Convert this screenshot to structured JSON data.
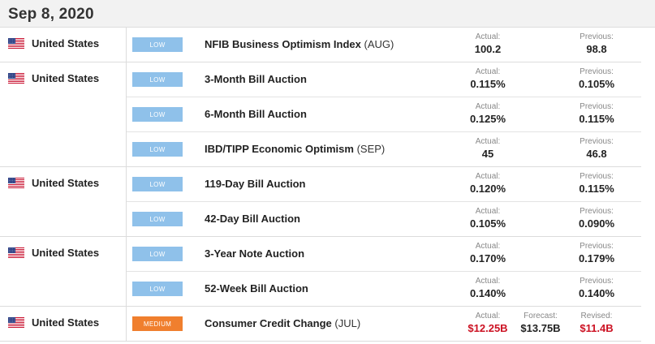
{
  "date": "Sep 8, 2020",
  "colors": {
    "low": "#8fc1ea",
    "medium": "#f07f2e",
    "negative": "#cc1122"
  },
  "groups": [
    {
      "country": "United States",
      "flag_icon": "us-flag-icon",
      "events": [
        {
          "impact": "LOW",
          "name": "NFIB Business Optimism Index",
          "period": "(AUG)",
          "stats": [
            {
              "label": "Actual:",
              "value": "100.2"
            },
            {
              "label": "Previous:",
              "value": "98.8"
            }
          ]
        }
      ]
    },
    {
      "country": "United States",
      "flag_icon": "us-flag-icon",
      "events": [
        {
          "impact": "LOW",
          "name": "3-Month Bill Auction",
          "period": "",
          "stats": [
            {
              "label": "Actual:",
              "value": "0.115%"
            },
            {
              "label": "Previous:",
              "value": "0.105%"
            }
          ]
        },
        {
          "impact": "LOW",
          "name": "6-Month Bill Auction",
          "period": "",
          "stats": [
            {
              "label": "Actual:",
              "value": "0.125%"
            },
            {
              "label": "Previous:",
              "value": "0.115%"
            }
          ]
        },
        {
          "impact": "LOW",
          "name": "IBD/TIPP Economic Optimism",
          "period": "(SEP)",
          "stats": [
            {
              "label": "Actual:",
              "value": "45"
            },
            {
              "label": "Previous:",
              "value": "46.8"
            }
          ]
        }
      ]
    },
    {
      "country": "United States",
      "flag_icon": "us-flag-icon",
      "events": [
        {
          "impact": "LOW",
          "name": "119-Day Bill Auction",
          "period": "",
          "stats": [
            {
              "label": "Actual:",
              "value": "0.120%"
            },
            {
              "label": "Previous:",
              "value": "0.115%"
            }
          ]
        },
        {
          "impact": "LOW",
          "name": "42-Day Bill Auction",
          "period": "",
          "stats": [
            {
              "label": "Actual:",
              "value": "0.105%"
            },
            {
              "label": "Previous:",
              "value": "0.090%"
            }
          ]
        }
      ]
    },
    {
      "country": "United States",
      "flag_icon": "us-flag-icon",
      "events": [
        {
          "impact": "LOW",
          "name": "3-Year Note Auction",
          "period": "",
          "stats": [
            {
              "label": "Actual:",
              "value": "0.170%"
            },
            {
              "label": "Previous:",
              "value": "0.179%"
            }
          ]
        },
        {
          "impact": "LOW",
          "name": "52-Week Bill Auction",
          "period": "",
          "stats": [
            {
              "label": "Actual:",
              "value": "0.140%"
            },
            {
              "label": "Previous:",
              "value": "0.140%"
            }
          ]
        }
      ]
    },
    {
      "country": "United States",
      "flag_icon": "us-flag-icon",
      "events": [
        {
          "impact": "MEDIUM",
          "name": "Consumer Credit Change",
          "period": "(JUL)",
          "stats": [
            {
              "label": "Actual:",
              "value": "$12.25B",
              "color": "negative"
            },
            {
              "label": "Forecast:",
              "value": "$13.75B"
            },
            {
              "label": "Revised:",
              "value": "$11.4B",
              "color": "negative"
            }
          ]
        }
      ]
    }
  ]
}
